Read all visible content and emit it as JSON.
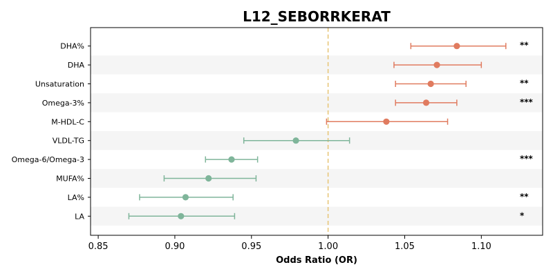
{
  "chart_data": {
    "type": "forest",
    "title": "L12_SEBORRKERAT",
    "xlabel": "Odds Ratio (OR)",
    "xlim": [
      0.845,
      1.14
    ],
    "xticks": [
      "0.85",
      "0.90",
      "0.95",
      "1.00",
      "1.05",
      "1.10"
    ],
    "reference_line": 1.0,
    "colors": {
      "above": "#e07b5f",
      "below": "#7fb59a",
      "ref": "#e8c77a",
      "band": "#f5f5f5"
    },
    "rows": [
      {
        "label": "DHA%",
        "or": 1.084,
        "lo": 1.054,
        "hi": 1.116,
        "sig": "**"
      },
      {
        "label": "DHA",
        "or": 1.071,
        "lo": 1.043,
        "hi": 1.1,
        "sig": ""
      },
      {
        "label": "Unsaturation",
        "or": 1.067,
        "lo": 1.044,
        "hi": 1.09,
        "sig": "**"
      },
      {
        "label": "Omega-3%",
        "or": 1.064,
        "lo": 1.044,
        "hi": 1.084,
        "sig": "***"
      },
      {
        "label": "M-HDL-C",
        "or": 1.038,
        "lo": 0.999,
        "hi": 1.078,
        "sig": ""
      },
      {
        "label": "VLDL-TG",
        "or": 0.979,
        "lo": 0.945,
        "hi": 1.014,
        "sig": ""
      },
      {
        "label": "Omega-6/Omega-3",
        "or": 0.937,
        "lo": 0.92,
        "hi": 0.954,
        "sig": "***"
      },
      {
        "label": "MUFA%",
        "or": 0.922,
        "lo": 0.893,
        "hi": 0.953,
        "sig": ""
      },
      {
        "label": "LA%",
        "or": 0.907,
        "lo": 0.877,
        "hi": 0.938,
        "sig": "**"
      },
      {
        "label": "LA",
        "or": 0.904,
        "lo": 0.87,
        "hi": 0.939,
        "sig": "*"
      }
    ]
  }
}
